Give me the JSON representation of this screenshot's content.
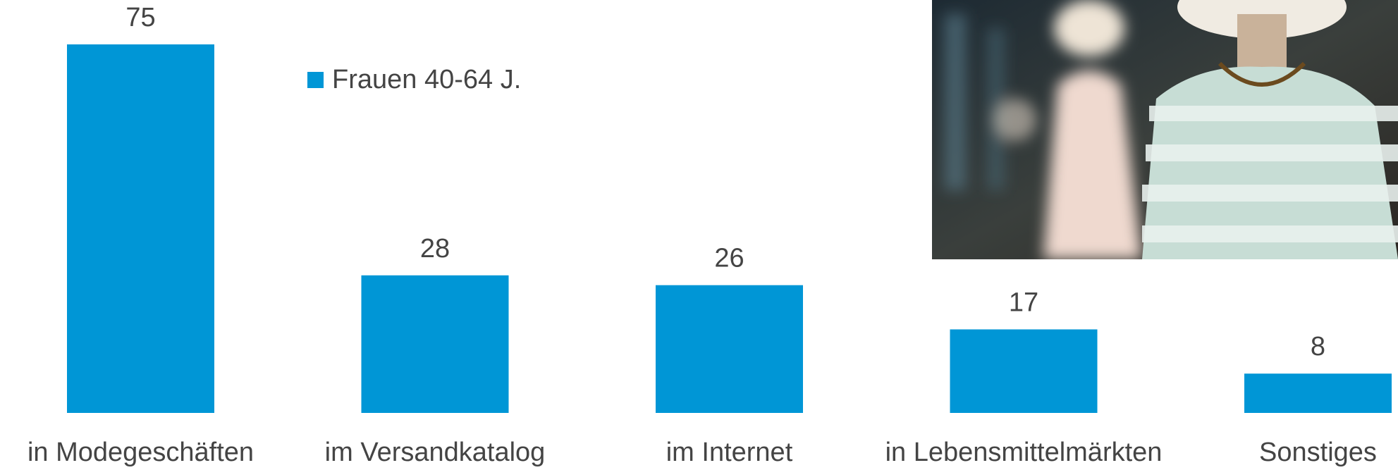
{
  "chart_data": {
    "type": "bar",
    "categories": [
      "in Modegeschäften",
      "im Versandkatalog",
      "im Internet",
      "in Lebensmittelmärkten",
      "Sonstiges"
    ],
    "series": [
      {
        "name": "Frauen 40-64 J.",
        "color": "#0096d6",
        "values": [
          75,
          28,
          26,
          17,
          8
        ]
      }
    ],
    "legend": "top-center"
  }
}
